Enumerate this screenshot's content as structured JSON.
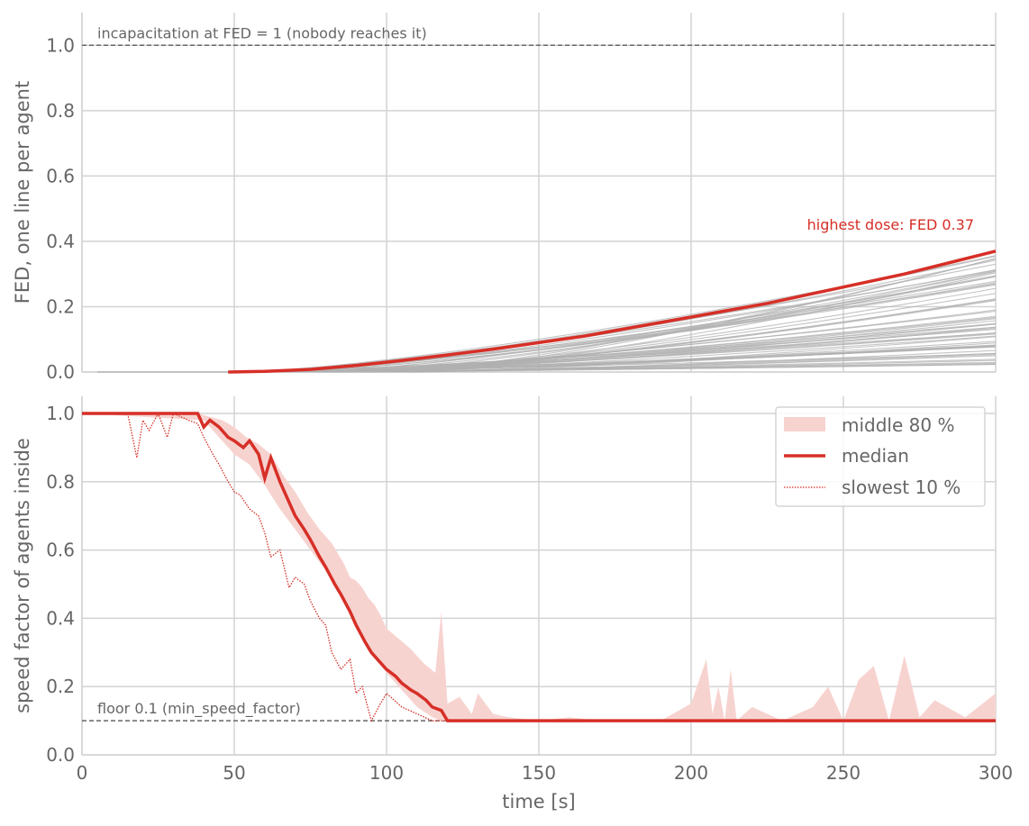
{
  "colors": {
    "accent": "#d62f27",
    "band": "#f7d3d0",
    "agent_line": "#b0b0b0",
    "grid": "#d3d3d3",
    "reference": "#666666",
    "text": "#666666"
  },
  "chart_data": [
    {
      "type": "line",
      "ylabel": "FED, one line per agent",
      "xlim": [
        0,
        300
      ],
      "ylim": [
        0,
        1.1
      ],
      "xticks": [
        "0",
        "50",
        "100",
        "150",
        "200",
        "250",
        "300"
      ],
      "yticks": [
        "0.0",
        "0.2",
        "0.4",
        "0.6",
        "0.8",
        "1.0"
      ],
      "grid": true,
      "reference_line": {
        "y": 1.0,
        "label": "incapacitation at FED = 1 (nobody reaches it)"
      },
      "annotation": "highest dose: FED 0.37",
      "highlight_series": {
        "x": [
          48,
          60,
          75,
          90,
          105,
          120,
          135,
          150,
          165,
          180,
          195,
          210,
          225,
          240,
          255,
          270,
          285,
          300
        ],
        "y": [
          0.0,
          0.002,
          0.008,
          0.02,
          0.035,
          0.052,
          0.07,
          0.09,
          0.11,
          0.135,
          0.16,
          0.185,
          0.21,
          0.24,
          0.27,
          0.3,
          0.335,
          0.37
        ]
      },
      "agent_series": {
        "start_range_s": [
          48,
          110
        ],
        "final_fed_range": [
          0.02,
          0.36
        ],
        "count": 60
      }
    },
    {
      "type": "area",
      "xlabel": "time [s]",
      "ylabel": "speed factor of agents inside",
      "xlim": [
        0,
        300
      ],
      "ylim": [
        0,
        1.05
      ],
      "xticks": [
        "0",
        "50",
        "100",
        "150",
        "200",
        "250",
        "300"
      ],
      "yticks": [
        "0.0",
        "0.2",
        "0.4",
        "0.6",
        "0.8",
        "1.0"
      ],
      "grid": true,
      "legend_position": "top-right",
      "reference_line": {
        "y": 0.1,
        "label": "floor 0.1 (min_speed_factor)"
      },
      "legend": [
        "middle 80 %",
        "median",
        "slowest 10 %"
      ],
      "median": {
        "x": [
          0,
          38,
          40,
          42,
          45,
          48,
          50,
          53,
          55,
          58,
          60,
          62,
          65,
          68,
          70,
          73,
          75,
          78,
          80,
          83,
          85,
          88,
          90,
          93,
          95,
          98,
          100,
          103,
          105,
          108,
          110,
          113,
          115,
          118,
          120,
          125,
          300
        ],
        "y": [
          1.0,
          1.0,
          0.96,
          0.98,
          0.96,
          0.93,
          0.92,
          0.9,
          0.92,
          0.88,
          0.81,
          0.87,
          0.8,
          0.74,
          0.7,
          0.66,
          0.63,
          0.58,
          0.55,
          0.5,
          0.47,
          0.42,
          0.38,
          0.33,
          0.3,
          0.27,
          0.25,
          0.23,
          0.21,
          0.19,
          0.18,
          0.16,
          0.14,
          0.13,
          0.1,
          0.1,
          0.1
        ]
      },
      "slowest_10": {
        "x": [
          0,
          15,
          18,
          20,
          22,
          25,
          28,
          30,
          35,
          38,
          40,
          43,
          45,
          48,
          50,
          52,
          55,
          58,
          60,
          62,
          65,
          68,
          70,
          73,
          75,
          78,
          80,
          82,
          85,
          88,
          90,
          92,
          95,
          98,
          100,
          105,
          110,
          115,
          118,
          300
        ],
        "y": [
          1.0,
          1.0,
          0.87,
          0.98,
          0.95,
          1.0,
          0.93,
          1.0,
          0.98,
          0.97,
          0.93,
          0.88,
          0.85,
          0.8,
          0.77,
          0.76,
          0.72,
          0.7,
          0.65,
          0.58,
          0.6,
          0.49,
          0.52,
          0.5,
          0.45,
          0.4,
          0.38,
          0.3,
          0.25,
          0.28,
          0.18,
          0.2,
          0.1,
          0.15,
          0.18,
          0.14,
          0.12,
          0.1,
          0.1,
          0.1
        ]
      },
      "band_upper": {
        "x": [
          0,
          38,
          42,
          46,
          50,
          54,
          58,
          62,
          66,
          70,
          74,
          78,
          82,
          86,
          88,
          90,
          92,
          94,
          96,
          98,
          100,
          104,
          108,
          112,
          116,
          118,
          120,
          124,
          128,
          130,
          135,
          140,
          150,
          160,
          170,
          180,
          190,
          200,
          205,
          207,
          209,
          211,
          213,
          215,
          220,
          230,
          240,
          245,
          250,
          255,
          260,
          265,
          270,
          272,
          275,
          280,
          290,
          300
        ],
        "y": [
          1.0,
          1.0,
          0.99,
          0.98,
          0.96,
          0.93,
          0.91,
          0.88,
          0.82,
          0.77,
          0.71,
          0.66,
          0.62,
          0.56,
          0.52,
          0.51,
          0.49,
          0.46,
          0.44,
          0.41,
          0.37,
          0.34,
          0.31,
          0.27,
          0.24,
          0.42,
          0.15,
          0.17,
          0.12,
          0.18,
          0.12,
          0.11,
          0.1,
          0.11,
          0.1,
          0.1,
          0.1,
          0.15,
          0.28,
          0.12,
          0.2,
          0.1,
          0.25,
          0.1,
          0.14,
          0.1,
          0.14,
          0.2,
          0.1,
          0.22,
          0.26,
          0.1,
          0.29,
          0.22,
          0.11,
          0.16,
          0.11,
          0.18
        ]
      },
      "band_lower": {
        "x": [
          0,
          40,
          45,
          50,
          55,
          60,
          65,
          70,
          75,
          80,
          85,
          90,
          95,
          100,
          105,
          110,
          115,
          118,
          300
        ],
        "y": [
          1.0,
          0.98,
          0.93,
          0.88,
          0.85,
          0.79,
          0.72,
          0.66,
          0.6,
          0.54,
          0.47,
          0.38,
          0.3,
          0.24,
          0.19,
          0.14,
          0.11,
          0.1,
          0.1
        ]
      }
    }
  ]
}
